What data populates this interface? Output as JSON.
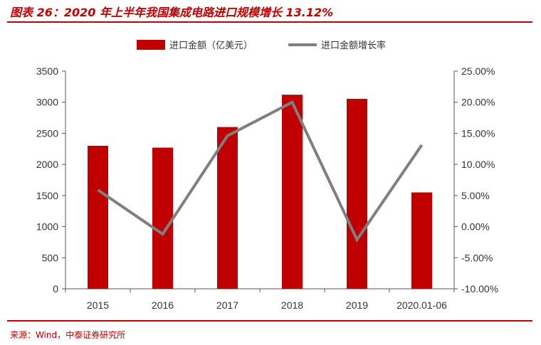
{
  "header": {
    "title": "图表 26：2020 年上半年我国集成电路进口规模增长 13.12%"
  },
  "footer": {
    "source": "来源：Wind，中泰证券研究所"
  },
  "colors": {
    "accent": "#c00000",
    "bar": "#c00000",
    "line": "#7f7f7f"
  },
  "chart_data": {
    "type": "bar",
    "title": "图表 26：2020 年上半年我国集成电路进口规模增长 13.12%",
    "categories": [
      "2015",
      "2016",
      "2017",
      "2018",
      "2019",
      "2020.01-06"
    ],
    "series": [
      {
        "name": "进口金额（亿美元）",
        "type": "bar",
        "axis": "left",
        "values": [
          2300,
          2270,
          2601,
          3121,
          3055,
          1550
        ]
      },
      {
        "name": "进口金额增长率",
        "type": "line",
        "axis": "right",
        "values": [
          5.9,
          -1.2,
          14.6,
          20.0,
          -2.1,
          13.12
        ]
      }
    ],
    "ylim_left": [
      0,
      3500
    ],
    "yticks_left": [
      "0",
      "500",
      "1000",
      "1500",
      "2000",
      "2500",
      "3000",
      "3500"
    ],
    "ylim_right": [
      -10,
      25
    ],
    "yticks_right": [
      "-10.00%",
      "-5.00%",
      "0.00%",
      "5.00%",
      "10.00%",
      "15.00%",
      "20.00%",
      "25.00%"
    ],
    "legend_position": "top-center",
    "grid": false
  }
}
